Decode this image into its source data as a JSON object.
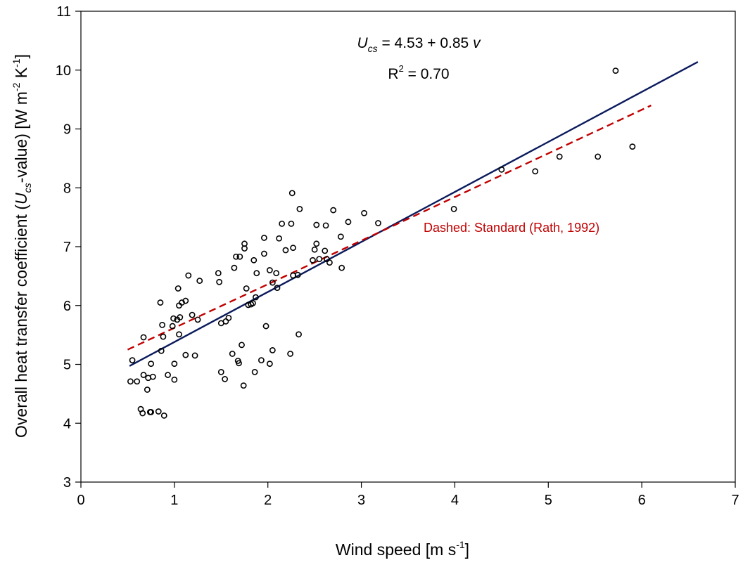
{
  "chart_data": {
    "type": "scatter",
    "title": "",
    "xlabel": "Wind speed [m s⁻¹]",
    "ylabel": "Overall heat transfer coefficient (Uₙₛ-value) [W m⁻² K⁻¹]",
    "xlabel_parts": {
      "main": "Wind speed [m s",
      "sup": "-1",
      "end": "]"
    },
    "ylabel_parts": {
      "a": "Overall heat transfer coefficient (",
      "U": "U",
      "sub": "cs",
      "b": "-value) [W m",
      "sup1": "-2",
      "c": " K",
      "sup2": "-1",
      "d": "]"
    },
    "xlim": [
      0,
      7
    ],
    "ylim": [
      3,
      11
    ],
    "x_ticks": [
      0,
      1,
      2,
      3,
      4,
      5,
      6,
      7
    ],
    "y_ticks": [
      3,
      4,
      5,
      6,
      7,
      8,
      9,
      10,
      11
    ],
    "grid": false,
    "equation": {
      "U": "U",
      "sub": "cs",
      "rest": " = 4.53 + 0.85 ",
      "v": "v"
    },
    "r2": {
      "R": "R",
      "sup": "2",
      "rest": " = 0.70"
    },
    "dashed_label": "Dashed: Standard (Rath, 1992)",
    "colors": {
      "fit": "#0a1a5c",
      "standard": "#c00000",
      "points": "#000000"
    },
    "fit_line": {
      "intercept": 4.53,
      "slope": 0.85,
      "x_range": [
        0.52,
        6.6
      ]
    },
    "standard_line": {
      "x": [
        0.5,
        6.1
      ],
      "y": [
        5.25,
        9.4
      ]
    },
    "points": [
      [
        0.55,
        5.07
      ],
      [
        0.53,
        4.71
      ],
      [
        0.6,
        4.71
      ],
      [
        0.64,
        4.24
      ],
      [
        0.66,
        4.17
      ],
      [
        0.67,
        5.46
      ],
      [
        0.67,
        4.82
      ],
      [
        0.71,
        4.57
      ],
      [
        0.72,
        4.77
      ],
      [
        0.74,
        4.19
      ],
      [
        0.75,
        5.01
      ],
      [
        0.77,
        4.79
      ],
      [
        0.75,
        4.19
      ],
      [
        0.83,
        4.2
      ],
      [
        0.85,
        6.05
      ],
      [
        0.86,
        5.23
      ],
      [
        0.87,
        5.67
      ],
      [
        0.88,
        5.47
      ],
      [
        0.89,
        4.13
      ],
      [
        0.93,
        4.82
      ],
      [
        0.98,
        5.65
      ],
      [
        0.99,
        5.78
      ],
      [
        1.0,
        5.01
      ],
      [
        1.0,
        4.74
      ],
      [
        1.03,
        5.76
      ],
      [
        1.04,
        6.29
      ],
      [
        1.05,
        6.0
      ],
      [
        1.05,
        5.51
      ],
      [
        1.06,
        5.8
      ],
      [
        1.08,
        6.05
      ],
      [
        1.12,
        6.08
      ],
      [
        1.12,
        5.16
      ],
      [
        1.15,
        6.51
      ],
      [
        1.19,
        5.84
      ],
      [
        1.22,
        5.15
      ],
      [
        1.25,
        5.76
      ],
      [
        1.27,
        6.42
      ],
      [
        1.47,
        6.55
      ],
      [
        1.48,
        6.4
      ],
      [
        1.5,
        5.7
      ],
      [
        1.5,
        4.87
      ],
      [
        1.54,
        4.75
      ],
      [
        1.55,
        5.73
      ],
      [
        1.58,
        5.79
      ],
      [
        1.62,
        5.18
      ],
      [
        1.64,
        6.64
      ],
      [
        1.66,
        6.83
      ],
      [
        1.68,
        5.06
      ],
      [
        1.69,
        5.02
      ],
      [
        1.7,
        6.83
      ],
      [
        1.72,
        5.33
      ],
      [
        1.74,
        4.64
      ],
      [
        1.75,
        6.97
      ],
      [
        1.75,
        7.05
      ],
      [
        1.77,
        6.29
      ],
      [
        1.79,
        6.01
      ],
      [
        1.82,
        6.02
      ],
      [
        1.84,
        6.04
      ],
      [
        1.85,
        6.77
      ],
      [
        1.86,
        4.87
      ],
      [
        1.87,
        6.14
      ],
      [
        1.88,
        6.55
      ],
      [
        1.93,
        5.07
      ],
      [
        1.96,
        7.15
      ],
      [
        1.96,
        6.88
      ],
      [
        1.98,
        5.65
      ],
      [
        2.02,
        5.01
      ],
      [
        2.02,
        6.6
      ],
      [
        2.05,
        5.24
      ],
      [
        2.05,
        6.39
      ],
      [
        2.09,
        6.55
      ],
      [
        2.1,
        6.3
      ],
      [
        2.12,
        7.14
      ],
      [
        2.15,
        7.39
      ],
      [
        2.19,
        6.94
      ],
      [
        2.24,
        5.18
      ],
      [
        2.25,
        7.39
      ],
      [
        2.26,
        7.91
      ],
      [
        2.27,
        6.98
      ],
      [
        2.27,
        6.51
      ],
      [
        2.32,
        6.52
      ],
      [
        2.33,
        5.51
      ],
      [
        2.34,
        7.64
      ],
      [
        2.48,
        6.77
      ],
      [
        2.5,
        6.95
      ],
      [
        2.52,
        7.05
      ],
      [
        2.52,
        7.37
      ],
      [
        2.55,
        6.79
      ],
      [
        2.61,
        6.93
      ],
      [
        2.62,
        7.36
      ],
      [
        2.63,
        6.79
      ],
      [
        2.66,
        6.73
      ],
      [
        2.7,
        7.62
      ],
      [
        2.78,
        7.17
      ],
      [
        2.79,
        6.64
      ],
      [
        2.86,
        7.42
      ],
      [
        3.03,
        7.57
      ],
      [
        3.18,
        7.4
      ],
      [
        3.99,
        7.64
      ],
      [
        4.5,
        8.31
      ],
      [
        4.86,
        8.28
      ],
      [
        5.12,
        8.53
      ],
      [
        5.53,
        8.53
      ],
      [
        5.72,
        9.99
      ],
      [
        5.9,
        8.7
      ]
    ]
  }
}
